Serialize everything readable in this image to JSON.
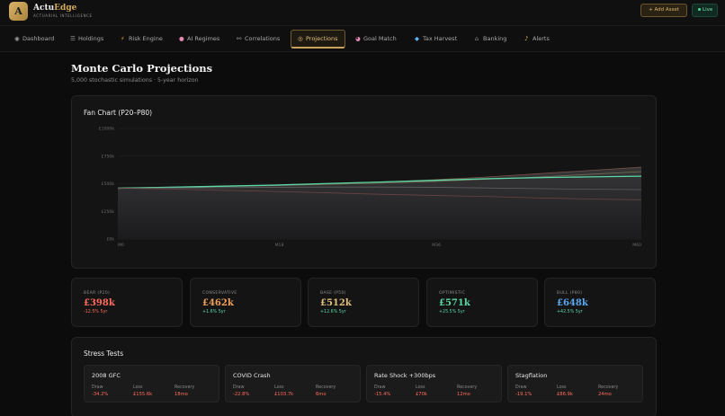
{
  "brand": {
    "logo_letter": "A",
    "name_main": "Actu",
    "name_accent": "Edge",
    "subtitle": "ACTUARIAL INTELLIGENCE"
  },
  "header": {
    "add_asset": "+ Add Asset",
    "live": "Live"
  },
  "nav": {
    "tabs": [
      {
        "label": "Dashboard",
        "icon": "◉"
      },
      {
        "label": "Holdings",
        "icon": "☰"
      },
      {
        "label": "Risk Engine",
        "icon": "⚡"
      },
      {
        "label": "AI Regimes",
        "icon": "●"
      },
      {
        "label": "Correlations",
        "icon": "⚯"
      },
      {
        "label": "Projections",
        "icon": "◎"
      },
      {
        "label": "Goal Match",
        "icon": "◕"
      },
      {
        "label": "Tax Harvest",
        "icon": "◆"
      },
      {
        "label": "Banking",
        "icon": "⌂"
      },
      {
        "label": "Alerts",
        "icon": "♪"
      }
    ],
    "active": "Projections"
  },
  "page": {
    "title": "Monte Carlo Projections",
    "subtitle": "5,000 stochastic simulations · 5-year horizon"
  },
  "chart_title": "Fan Chart (P20–P80)",
  "chart_data": {
    "type": "area",
    "title": "Fan Chart (P20–P80)",
    "x_ticks": [
      "M0",
      "M18",
      "M36",
      "M60"
    ],
    "y_ticks": [
      "£0k",
      "£250k",
      "£500k",
      "£750k",
      "£1000k"
    ],
    "ylim": [
      0,
      1000
    ],
    "xlim": [
      0,
      60
    ],
    "x": [
      0,
      6,
      12,
      18,
      24,
      30,
      36,
      42,
      48,
      54,
      60
    ],
    "series": [
      {
        "values": [
          460,
          470,
          478,
          488,
          500,
          515,
          535,
          560,
          590,
          620,
          650
        ],
        "color": "#8a5a4a"
      },
      {
        "values": [
          460,
          468,
          475,
          483,
          495,
          505,
          520,
          540,
          560,
          585,
          610
        ],
        "color": "#8a7a5a"
      },
      {
        "values": [
          460,
          468,
          478,
          488,
          502,
          515,
          530,
          545,
          555,
          562,
          568
        ],
        "color": "#5ad8a6"
      },
      {
        "values": [
          460,
          462,
          465,
          468,
          470,
          470,
          468,
          462,
          456,
          450,
          447
        ],
        "color": "#6a6a6a"
      },
      {
        "values": [
          460,
          452,
          440,
          430,
          418,
          405,
          395,
          385,
          372,
          362,
          355
        ],
        "color": "#7a4a4a"
      }
    ]
  },
  "scenarios": [
    {
      "label": "BEAR (P20)",
      "value": "£398k",
      "change": "-12.5% 5yr",
      "color": "#ff6b5a",
      "change_color": "#ff6b5a"
    },
    {
      "label": "CONSERVATIVE",
      "value": "£462k",
      "change": "+1.6% 5yr",
      "color": "#f0a05a",
      "change_color": "#5ad8a6"
    },
    {
      "label": "BASE (P50)",
      "value": "£512k",
      "change": "+12.6% 5yr",
      "color": "#e2c07a",
      "change_color": "#5ad8a6"
    },
    {
      "label": "OPTIMISTIC",
      "value": "£571k",
      "change": "+25.5% 5yr",
      "color": "#5ad8a6",
      "change_color": "#5ad8a6"
    },
    {
      "label": "BULL (P80)",
      "value": "£648k",
      "change": "+42.5% 5yr",
      "color": "#5aa8f0",
      "change_color": "#5ad8a6"
    }
  ],
  "stress": {
    "title": "Stress Tests",
    "col_labels": {
      "draw": "Draw",
      "loss": "Loss",
      "recovery": "Recovery"
    },
    "tests": [
      {
        "name": "2008 GFC",
        "draw": "-34.2%",
        "loss": "£155.6k",
        "recovery": "18mo"
      },
      {
        "name": "COVID Crash",
        "draw": "-22.8%",
        "loss": "£103.7k",
        "recovery": "6mo"
      },
      {
        "name": "Rate Shock +300bps",
        "draw": "-15.4%",
        "loss": "£70k",
        "recovery": "12mo"
      },
      {
        "name": "Stagflation",
        "draw": "-19.1%",
        "loss": "£86.9k",
        "recovery": "24mo"
      }
    ]
  }
}
